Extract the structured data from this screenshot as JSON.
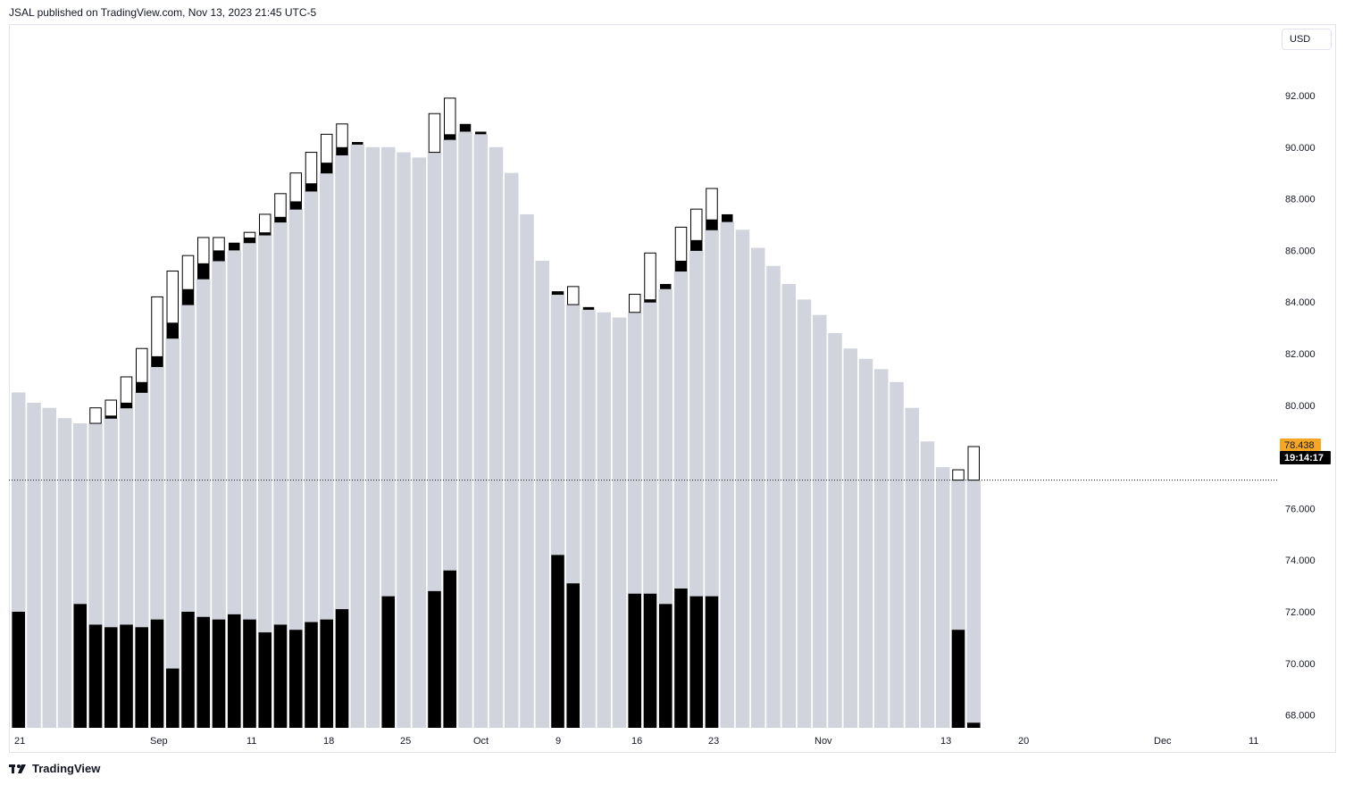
{
  "header": {
    "publish_text": "JSAL published on TradingView.com, Nov 13, 2023 21:45 UTC-5"
  },
  "currency_button": {
    "label": "USD"
  },
  "footer": {
    "logo_text": "TradingView"
  },
  "colors": {
    "bar_body": "#d1d4dc",
    "black": "#000000",
    "hollow": "#ffffff",
    "price_label_bg": "#f5a623",
    "countdown_bg": "#000000"
  },
  "chart_data": {
    "type": "bar",
    "y_axis": {
      "ticks": [
        "92.000",
        "90.000",
        "88.000",
        "86.000",
        "84.000",
        "82.000",
        "80.000",
        "76.000",
        "74.000",
        "72.000",
        "70.000",
        "68.000"
      ],
      "ylim": [
        67.5,
        93.0
      ]
    },
    "x_axis": {
      "labels": [
        "21",
        "Sep",
        "11",
        "18",
        "25",
        "Oct",
        "9",
        "16",
        "23",
        "Nov",
        "13",
        "20",
        "Dec",
        "11"
      ]
    },
    "last_price": {
      "value": "78.438",
      "countdown": "19:14:17",
      "line_value": 77.1
    },
    "bars": [
      {
        "top": 80.5,
        "hollow_top": 80.5,
        "black_top": null,
        "volume": 72.0
      },
      {
        "top": 80.1,
        "hollow_top": null,
        "black_top": null,
        "volume": null
      },
      {
        "top": 79.9,
        "hollow_top": null,
        "black_top": null,
        "volume": null
      },
      {
        "top": 79.5,
        "hollow_top": null,
        "black_top": null,
        "volume": null
      },
      {
        "top": 79.3,
        "hollow_top": null,
        "black_top": null,
        "volume": 72.3
      },
      {
        "top": 79.3,
        "hollow_top": 79.9,
        "black_top": null,
        "volume": 71.5
      },
      {
        "top": 79.5,
        "hollow_top": 80.2,
        "black_top": 79.6,
        "volume": 71.4
      },
      {
        "top": 79.9,
        "hollow_top": 81.1,
        "black_top": 80.1,
        "volume": 71.5
      },
      {
        "top": 80.5,
        "hollow_top": 82.2,
        "black_top": 80.9,
        "volume": 71.4
      },
      {
        "top": 81.5,
        "hollow_top": 84.2,
        "black_top": 81.9,
        "volume": 71.7
      },
      {
        "top": 82.6,
        "hollow_top": 85.2,
        "black_top": 83.2,
        "volume": 69.8
      },
      {
        "top": 83.9,
        "hollow_top": 85.8,
        "black_top": 84.5,
        "volume": 72.0
      },
      {
        "top": 84.9,
        "hollow_top": 86.5,
        "black_top": 85.5,
        "volume": 71.8
      },
      {
        "top": 85.6,
        "hollow_top": 86.5,
        "black_top": 86.0,
        "volume": 71.7
      },
      {
        "top": 86.0,
        "hollow_top": null,
        "black_top": 86.3,
        "volume": 71.9
      },
      {
        "top": 86.3,
        "hollow_top": 86.7,
        "black_top": 86.5,
        "volume": 71.7
      },
      {
        "top": 86.6,
        "hollow_top": 87.4,
        "black_top": 86.7,
        "volume": 71.2
      },
      {
        "top": 87.1,
        "hollow_top": 88.2,
        "black_top": 87.3,
        "volume": 71.5
      },
      {
        "top": 87.6,
        "hollow_top": 89.0,
        "black_top": 87.9,
        "volume": 71.3
      },
      {
        "top": 88.3,
        "hollow_top": 89.8,
        "black_top": 88.6,
        "volume": 71.6
      },
      {
        "top": 89.0,
        "hollow_top": 90.5,
        "black_top": 89.4,
        "volume": 71.7
      },
      {
        "top": 89.7,
        "hollow_top": 90.9,
        "black_top": 90.0,
        "volume": 72.1
      },
      {
        "top": 90.1,
        "hollow_top": null,
        "black_top": 90.2,
        "volume": null
      },
      {
        "top": 90.0,
        "hollow_top": 90.0,
        "black_top": null,
        "volume": null
      },
      {
        "top": 90.0,
        "hollow_top": null,
        "black_top": null,
        "volume": 72.6
      },
      {
        "top": 89.8,
        "hollow_top": null,
        "black_top": null,
        "volume": null
      },
      {
        "top": 89.6,
        "hollow_top": null,
        "black_top": null,
        "volume": null
      },
      {
        "top": 89.8,
        "hollow_top": 91.3,
        "black_top": null,
        "volume": 72.8
      },
      {
        "top": 90.3,
        "hollow_top": 91.9,
        "black_top": 90.5,
        "volume": 73.6
      },
      {
        "top": 90.6,
        "hollow_top": null,
        "black_top": 90.9,
        "volume": null
      },
      {
        "top": 90.5,
        "hollow_top": null,
        "black_top": 90.6,
        "volume": null
      },
      {
        "top": 90.0,
        "hollow_top": null,
        "black_top": null,
        "volume": null
      },
      {
        "top": 89.0,
        "hollow_top": null,
        "black_top": null,
        "volume": null
      },
      {
        "top": 87.4,
        "hollow_top": null,
        "black_top": null,
        "volume": null
      },
      {
        "top": 85.6,
        "hollow_top": null,
        "black_top": null,
        "volume": null
      },
      {
        "top": 84.3,
        "hollow_top": 84.4,
        "black_top": 84.4,
        "volume": 74.2
      },
      {
        "top": 83.9,
        "hollow_top": 84.6,
        "black_top": null,
        "volume": 73.1
      },
      {
        "top": 83.7,
        "hollow_top": null,
        "black_top": 83.7,
        "volume": null
      },
      {
        "top": 83.6,
        "hollow_top": null,
        "black_top": null,
        "volume": null
      },
      {
        "top": 83.4,
        "hollow_top": null,
        "black_top": null,
        "volume": null
      },
      {
        "top": 83.6,
        "hollow_top": 84.3,
        "black_top": null,
        "volume": 72.7
      },
      {
        "top": 84.0,
        "hollow_top": 85.9,
        "black_top": 84.0,
        "volume": 72.7
      },
      {
        "top": 84.5,
        "hollow_top": null,
        "black_top": 84.7,
        "volume": 72.3
      },
      {
        "top": 85.2,
        "hollow_top": 86.9,
        "black_top": 85.6,
        "volume": 72.9
      },
      {
        "top": 86.0,
        "hollow_top": 87.6,
        "black_top": 86.4,
        "volume": 72.6
      },
      {
        "top": 86.8,
        "hollow_top": 88.4,
        "black_top": 87.2,
        "volume": 72.6
      },
      {
        "top": 87.1,
        "hollow_top": null,
        "black_top": 87.4,
        "volume": null
      },
      {
        "top": 86.8,
        "hollow_top": null,
        "black_top": null,
        "volume": null
      },
      {
        "top": 86.1,
        "hollow_top": null,
        "black_top": null,
        "volume": null
      },
      {
        "top": 85.4,
        "hollow_top": null,
        "black_top": null,
        "volume": null
      },
      {
        "top": 84.7,
        "hollow_top": null,
        "black_top": null,
        "volume": null
      },
      {
        "top": 84.1,
        "hollow_top": null,
        "black_top": null,
        "volume": null
      },
      {
        "top": 83.5,
        "hollow_top": null,
        "black_top": null,
        "volume": null
      },
      {
        "top": 82.8,
        "hollow_top": null,
        "black_top": null,
        "volume": null
      },
      {
        "top": 82.2,
        "hollow_top": null,
        "black_top": null,
        "volume": null
      },
      {
        "top": 81.8,
        "hollow_top": null,
        "black_top": null,
        "volume": null
      },
      {
        "top": 81.4,
        "hollow_top": null,
        "black_top": null,
        "volume": null
      },
      {
        "top": 80.9,
        "hollow_top": null,
        "black_top": null,
        "volume": null
      },
      {
        "top": 79.9,
        "hollow_top": null,
        "black_top": null,
        "volume": null
      },
      {
        "top": 78.6,
        "hollow_top": null,
        "black_top": null,
        "volume": null
      },
      {
        "top": 77.6,
        "hollow_top": null,
        "black_top": null,
        "volume": null
      },
      {
        "top": 77.1,
        "hollow_top": 77.5,
        "black_top": null,
        "volume": 71.3
      },
      {
        "top": 77.1,
        "hollow_top": 78.4,
        "black_top": null,
        "volume": 67.7
      }
    ]
  }
}
